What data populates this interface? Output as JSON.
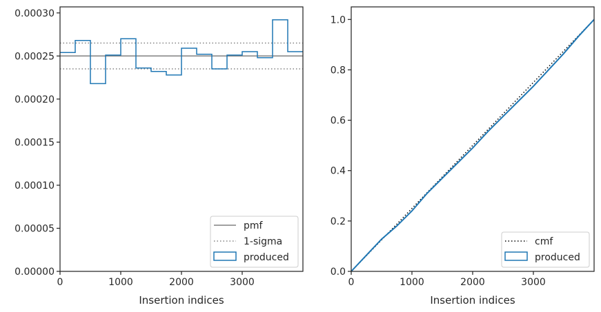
{
  "chart_data": [
    {
      "type": "line",
      "xlabel": "Insertion indices",
      "ylabel": "",
      "xlim": [
        0,
        4000
      ],
      "ylim": [
        0,
        0.000307
      ],
      "xticks": [
        0,
        1000,
        2000,
        3000
      ],
      "xtick_labels": [
        "0",
        "1000",
        "2000",
        "3000"
      ],
      "yticks": [
        0,
        5e-05,
        0.0001,
        0.00015,
        0.0002,
        0.00025,
        0.0003
      ],
      "ytick_labels": [
        "0.00000",
        "0.00005",
        "0.00010",
        "0.00015",
        "0.00020",
        "0.00025",
        "0.00030"
      ],
      "grid": false,
      "legend_position": "lower-right",
      "series": [
        {
          "name": "pmf",
          "kind": "hline",
          "y": 0.00025,
          "color": "#808080",
          "style": "solid"
        },
        {
          "name": "1-sigma",
          "kind": "hlines",
          "y": [
            0.000265,
            0.000235
          ],
          "color": "#808080",
          "style": "dotted"
        },
        {
          "name": "produced",
          "kind": "step",
          "color": "#1f77b4",
          "bin_edges": [
            0,
            250,
            500,
            750,
            1000,
            1250,
            1500,
            1750,
            2000,
            2250,
            2500,
            2750,
            3000,
            3250,
            3500,
            3750,
            4000
          ],
          "values": [
            0.000254,
            0.000268,
            0.000218,
            0.000251,
            0.00027,
            0.000236,
            0.000232,
            0.000228,
            0.000259,
            0.000252,
            0.000235,
            0.000251,
            0.000255,
            0.000248,
            0.000292,
            0.000255
          ]
        }
      ]
    },
    {
      "type": "line",
      "xlabel": "Insertion indices",
      "ylabel": "",
      "xlim": [
        0,
        4000
      ],
      "ylim": [
        0,
        1.05
      ],
      "xticks": [
        0,
        1000,
        2000,
        3000
      ],
      "xtick_labels": [
        "0",
        "1000",
        "2000",
        "3000"
      ],
      "yticks": [
        0,
        0.2,
        0.4,
        0.6,
        0.8,
        1.0
      ],
      "ytick_labels": [
        "0.0",
        "0.2",
        "0.4",
        "0.6",
        "0.8",
        "1.0"
      ],
      "grid": false,
      "legend_position": "lower-right",
      "series": [
        {
          "name": "cmf",
          "kind": "line",
          "color": "#000000",
          "style": "dotted",
          "x": [
            0,
            4000
          ],
          "y": [
            0,
            1.0
          ]
        },
        {
          "name": "produced",
          "kind": "step",
          "color": "#1f77b4",
          "x": [
            0,
            250,
            500,
            750,
            1000,
            1250,
            1500,
            1750,
            2000,
            2250,
            2500,
            2750,
            3000,
            3250,
            3500,
            3750,
            4000
          ],
          "y": [
            0,
            0.064,
            0.128,
            0.18,
            0.24,
            0.31,
            0.37,
            0.43,
            0.49,
            0.555,
            0.615,
            0.675,
            0.735,
            0.8,
            0.865,
            0.935,
            1.0
          ]
        }
      ]
    }
  ]
}
